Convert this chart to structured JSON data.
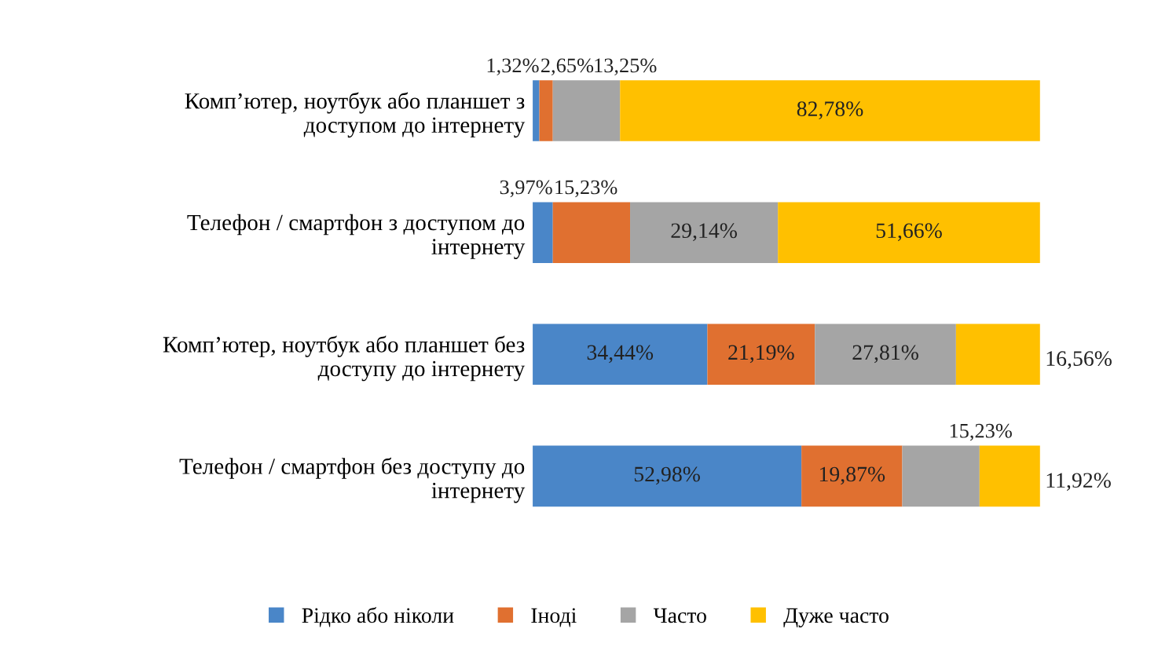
{
  "chart_data": {
    "type": "bar",
    "orientation": "horizontal",
    "stacked": true,
    "categories": [
      "Комп’ютер, ноутбук або планшет з\nдоступом до інтернету",
      "Телефон / смартфон з доступом до\nінтернету",
      "Комп’ютер, ноутбук або планшет без\nдоступу до інтернету",
      "Телефон / смартфон без доступу до\nінтернету"
    ],
    "series": [
      {
        "name": "Рідко або ніколи",
        "color": "#4a86c8",
        "values": [
          1.32,
          3.97,
          34.44,
          52.98
        ],
        "value_labels": [
          "1,32%",
          "3,97%",
          "34,44%",
          "52,98%"
        ]
      },
      {
        "name": "Іноді",
        "color": "#e07030",
        "values": [
          2.65,
          15.23,
          21.19,
          19.87
        ],
        "value_labels": [
          "2,65%",
          "15,23%",
          "21,19%",
          "19,87%"
        ]
      },
      {
        "name": "Часто",
        "color": "#a5a5a5",
        "values": [
          13.25,
          29.14,
          27.81,
          15.23
        ],
        "value_labels": [
          "13,25%",
          "29,14%",
          "27,81%",
          "15,23%"
        ]
      },
      {
        "name": "Дуже часто",
        "color": "#ffc000",
        "values": [
          82.78,
          51.66,
          16.56,
          11.92
        ],
        "value_labels": [
          "82,78%",
          "51,66%",
          "16,56%",
          "11,92%"
        ]
      }
    ],
    "legend": "bottom",
    "tick_labels": "y",
    "grid": false
  }
}
